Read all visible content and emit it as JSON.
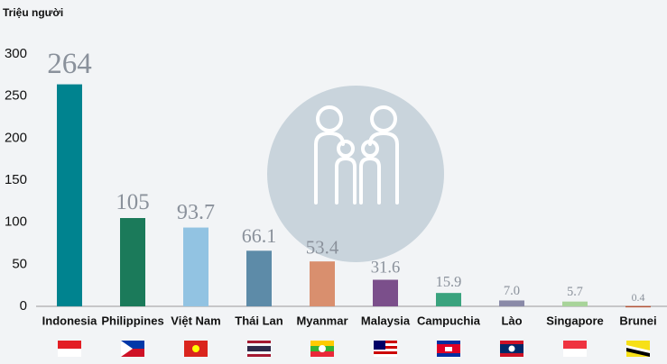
{
  "chart_data": {
    "type": "bar",
    "y_label": "Triệu người",
    "categories": [
      "Indonesia",
      "Philippines",
      "Việt Nam",
      "Thái Lan",
      "Myanmar",
      "Malaysia",
      "Campuchia",
      "Lào",
      "Singapore",
      "Brunei"
    ],
    "values": [
      264,
      105,
      93.7,
      66.1,
      53.4,
      31.6,
      15.9,
      7.0,
      5.7,
      0.4
    ],
    "value_labels": [
      "264",
      "105",
      "93.7",
      "66.1",
      "53.4",
      "31.6",
      "15.9",
      "7.0",
      "5.7",
      "0.4"
    ],
    "colors": [
      "#00838f",
      "#1b7a5a",
      "#92c3e2",
      "#5d8ba8",
      "#d98f6e",
      "#7b4f8b",
      "#3aa37e",
      "#8a8aa8",
      "#a8d49a",
      "#b5563a"
    ],
    "ylim": [
      0,
      300
    ],
    "yticks": [
      0,
      50,
      100,
      150,
      200,
      250,
      300
    ]
  }
}
